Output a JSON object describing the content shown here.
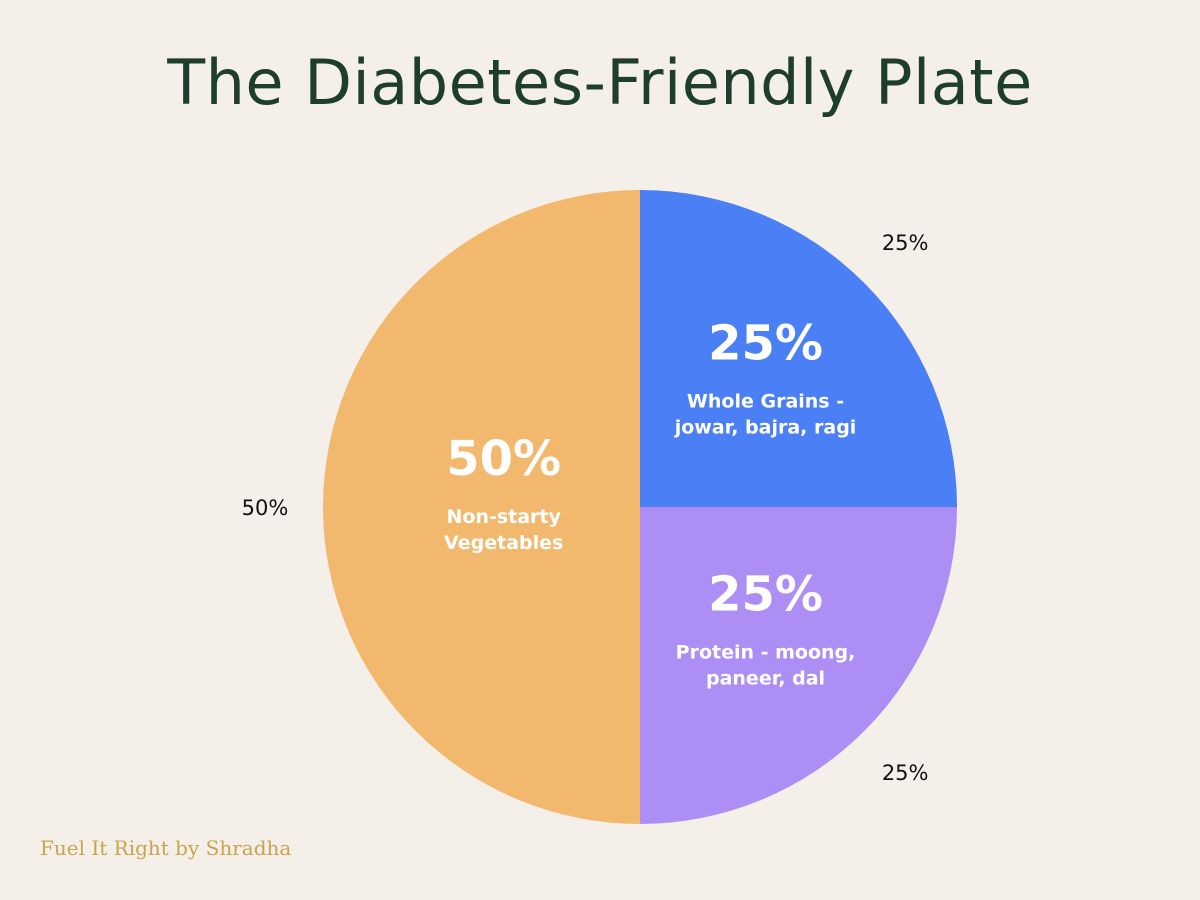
{
  "title": "The Diabetes-Friendly Plate",
  "footer": "Fuel It Right by Shradha",
  "colors": {
    "background": "#f4f0e9",
    "title": "#1e3d2b",
    "footer": "#c9a44a",
    "slice_label": "#ffffff",
    "outer_label": "#111111"
  },
  "chart_data": {
    "type": "pie",
    "start": "top",
    "direction": "clockwise",
    "slices": [
      {
        "name": "Whole Grains - jowar, bajra, ragi",
        "value": 25,
        "percent_label": "25%",
        "label_lines": [
          "Whole Grains -",
          "jowar, bajra, ragi"
        ],
        "outer_label": "25%",
        "color": "#4b7ff6"
      },
      {
        "name": "Protein - moong, paneer, dal",
        "value": 25,
        "percent_label": "25%",
        "label_lines": [
          "Protein - moong,",
          "paneer, dal"
        ],
        "outer_label": "25%",
        "color": "#ad8ef5"
      },
      {
        "name": "Non-starty Vegetables",
        "value": 50,
        "percent_label": "50%",
        "label_lines": [
          "Non-starty",
          "Vegetables"
        ],
        "outer_label": "50%",
        "color": "#f2b96e"
      }
    ]
  }
}
